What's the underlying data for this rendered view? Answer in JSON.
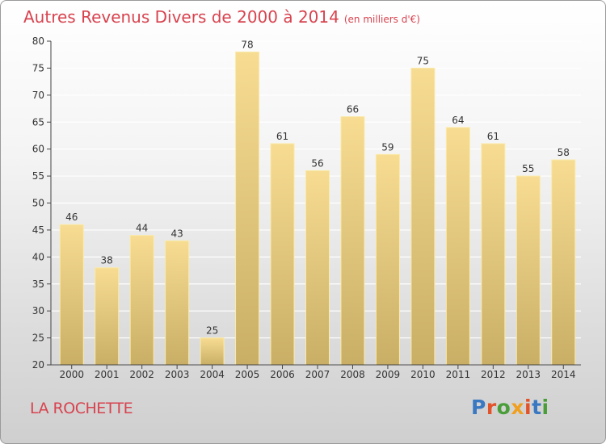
{
  "header": {
    "title": "Autres Revenus Divers de 2000 à 2014",
    "subtitle": "(en milliers d'€)"
  },
  "footer": {
    "place": "LA ROCHETTE",
    "logo": "Proxiti",
    "logo_colors": [
      "#3a78c2",
      "#e2532a",
      "#4a9e3a",
      "#f0a020",
      "#e2532a",
      "#3a78c2",
      "#4a9e3a"
    ]
  },
  "colors": {
    "bar_top": "#f7dc92",
    "bar_bottom": "#c9ae66",
    "bar_outline": "#fbeaa8",
    "grid": "#ffffff",
    "axis": "#444444",
    "title": "#d8434f"
  },
  "chart_data": {
    "type": "bar",
    "title": "Autres Revenus Divers de 2000 à 2014",
    "subtitle": "(en milliers d'€)",
    "categories": [
      "2000",
      "2001",
      "2002",
      "2003",
      "2004",
      "2005",
      "2006",
      "2007",
      "2008",
      "2009",
      "2010",
      "2011",
      "2012",
      "2013",
      "2014"
    ],
    "values": [
      46,
      38,
      44,
      43,
      25,
      78,
      61,
      56,
      66,
      59,
      75,
      64,
      61,
      55,
      58
    ],
    "ylim": [
      20,
      80
    ],
    "yticks": [
      20,
      25,
      30,
      35,
      40,
      45,
      50,
      55,
      60,
      65,
      70,
      75,
      80
    ],
    "grid": true,
    "xlabel": "",
    "ylabel": ""
  }
}
